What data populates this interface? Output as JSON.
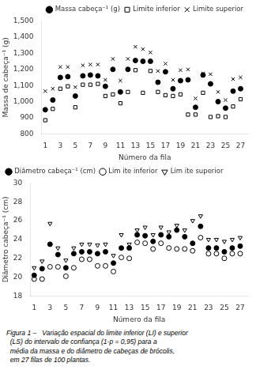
{
  "chart_data": [
    {
      "type": "scatter",
      "xlabel": "Número da fila",
      "ylabel": "Massa de cabeça⁻¹ (g)",
      "x": [
        1,
        2,
        3,
        4,
        5,
        6,
        7,
        8,
        9,
        10,
        11,
        12,
        13,
        14,
        15,
        16,
        17,
        18,
        19,
        20,
        21,
        22,
        23,
        24,
        25,
        26,
        27
      ],
      "series": [
        {
          "name": "Massa cabeça⁻¹ (g)",
          "color": "#000000",
          "marker": "circle",
          "values": [
            950,
            1010,
            1150,
            1155,
            1035,
            1160,
            1165,
            1160,
            1095,
            1200,
            1060,
            1200,
            1255,
            1250,
            1250,
            1120,
            1185,
            1080,
            1130,
            1135,
            965,
            1165,
            1110,
            1000,
            960,
            1065,
            1080
          ]
        },
        {
          "name": "Limite inferior",
          "color": "#000000",
          "marker": "square-open",
          "values": [
            885,
            955,
            1080,
            1095,
            965,
            1105,
            1105,
            1110,
            1035,
            1045,
            990,
            1060,
            1195,
            1055,
            1190,
            1060,
            1040,
            1035,
            1045,
            920,
            920,
            1055,
            905,
            910,
            905,
            970,
            1015
          ]
        },
        {
          "name": "Limite superior",
          "color": "#000000",
          "marker": "x",
          "values": [
            1065,
            1080,
            1215,
            1215,
            1090,
            1225,
            1230,
            1230,
            1135,
            1265,
            1130,
            1265,
            1340,
            1325,
            1305,
            1190,
            1235,
            1135,
            1195,
            1200,
            1020,
            1175,
            1170,
            1060,
            1010,
            1140,
            1150
          ]
        }
      ],
      "xlim": [
        0.5,
        28
      ],
      "ylim": [
        800,
        1500
      ],
      "xticks": [
        1,
        3,
        5,
        7,
        9,
        11,
        13,
        15,
        17,
        19,
        21,
        23,
        25,
        27
      ],
      "yticks": [
        800,
        900,
        1000,
        1100,
        1200,
        1300,
        1400,
        1500
      ],
      "grid": false,
      "legend": "upper right"
    },
    {
      "type": "scatter",
      "xlabel": "Número da fila",
      "ylabel": "Diâmetro cabeça⁻¹ (cm)",
      "x": [
        1,
        2,
        3,
        4,
        5,
        6,
        7,
        8,
        9,
        10,
        11,
        12,
        13,
        14,
        15,
        16,
        17,
        18,
        19,
        20,
        21,
        22,
        23,
        24,
        25,
        26,
        27
      ],
      "series": [
        {
          "name": "Diâmetro cabeça⁻¹ (cm)",
          "color": "#000000",
          "marker": "circle",
          "values": [
            20.2,
            20.9,
            23.5,
            22.4,
            21.0,
            22.5,
            22.7,
            22.7,
            22.5,
            22.7,
            21.5,
            23.1,
            23.1,
            24.5,
            24.4,
            23.8,
            24.5,
            24.3,
            25.0,
            24.3,
            23.6,
            25.4,
            23.1,
            23.1,
            22.7,
            23.1,
            23.3
          ]
        },
        {
          "name": "Lim ite inferior",
          "color": "#000000",
          "marker": "circle-open",
          "values": [
            19.8,
            19.8,
            21.1,
            21.1,
            20.1,
            21.0,
            21.9,
            21.9,
            21.2,
            21.2,
            20.6,
            22.1,
            22.0,
            23.7,
            23.6,
            23.0,
            23.6,
            23.1,
            23.0,
            23.0,
            22.8,
            24.2,
            22.5,
            22.5,
            22.0,
            22.5,
            22.5
          ]
        },
        {
          "name": "Lim ite superior",
          "color": "#000000",
          "marker": "triangle-down-open",
          "values": [
            21.0,
            21.7,
            25.7,
            23.1,
            21.8,
            23.1,
            23.5,
            23.5,
            23.4,
            23.5,
            22.3,
            24.5,
            23.5,
            25.0,
            25.3,
            24.5,
            25.3,
            24.8,
            25.5,
            25.0,
            26.0,
            26.5,
            24.0,
            24.0,
            23.8,
            24.0,
            24.2
          ]
        }
      ],
      "xlim": [
        0.5,
        28
      ],
      "ylim": [
        18,
        30
      ],
      "xticks": [
        1,
        3,
        5,
        7,
        9,
        11,
        13,
        15,
        17,
        19,
        21,
        23,
        25,
        27
      ],
      "yticks": [
        18,
        20,
        22,
        24,
        26,
        28,
        30
      ],
      "grid": false,
      "legend": "upper left",
      "annotations": [
        "Figura 1 –   Variação espacial do limite inferior (LI) e superior\n  (LS) do intervalo de confiança (1-p = 0,95) para a\n  média da massa e do diâmetro de cabeças de brócolis,\n  em 27 filas de 100 plantas."
      ]
    }
  ]
}
